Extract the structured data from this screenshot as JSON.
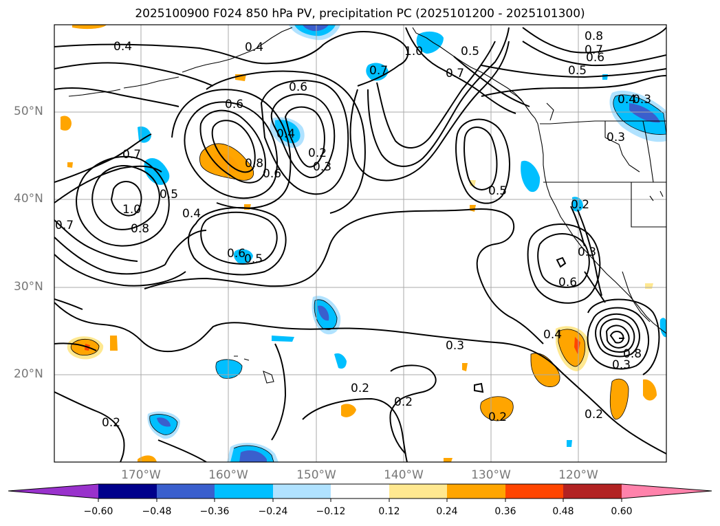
{
  "title": "2025100900 F024 850 hPa PV, precipitation PC (2025101200 - 2025101300)",
  "lat_labels": [
    "50°N",
    "40°N",
    "30°N",
    "20°N"
  ],
  "lon_labels": [
    "170°W",
    "160°W",
    "150°W",
    "140°W",
    "130°W",
    "120°W"
  ],
  "colorbar": {
    "ticks": [
      "−0.60",
      "−0.48",
      "−0.36",
      "−0.24",
      "−0.12",
      "0.12",
      "0.24",
      "0.36",
      "0.48",
      "0.60"
    ],
    "colors": [
      "#9932cc",
      "#00008b",
      "#3a5fcd",
      "#00bfff",
      "#b0e2ff",
      "#ffffff",
      "#ffe890",
      "#ffa500",
      "#ff4500",
      "#b22222",
      "#ff82ab"
    ]
  },
  "contour_labels": [
    "0.4",
    "0.4",
    "0.6",
    "0.6",
    "0.7",
    "0.8",
    "1.0",
    "0.7",
    "0.8",
    "0.6",
    "0.5",
    "0.5",
    "0.4",
    "0.6",
    "0.2",
    "0.3",
    "0.4",
    "0.7",
    "1.0",
    "0.7",
    "0.8",
    "0.7",
    "0.6",
    "0.5",
    "0.4",
    "0.3",
    "0.5",
    "0.2",
    "0.3",
    "0.6",
    "0.4",
    "0.3",
    "0.8",
    "0.5",
    "0.3",
    "0.2",
    "0.2",
    "0.2",
    "0.2",
    "0.2",
    "0.3"
  ]
}
